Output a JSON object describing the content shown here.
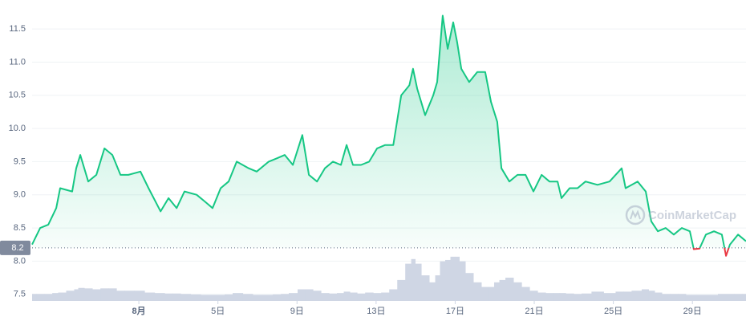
{
  "chart_data": {
    "type": "line",
    "x": [
      -4.4,
      -3.99,
      -3.58,
      -3.18,
      -2.98,
      -2.37,
      -2.17,
      -1.96,
      -1.56,
      -1.15,
      -0.74,
      -0.34,
      0.07,
      0.47,
      1.08,
      1.49,
      2.1,
      2.5,
      2.91,
      3.31,
      3.92,
      4.33,
      4.73,
      5.14,
      5.54,
      5.95,
      6.56,
      6.96,
      7.57,
      7.98,
      8.38,
      8.79,
      9.27,
      9.6,
      10.01,
      10.41,
      10.82,
      11.22,
      11.51,
      11.83,
      12.24,
      12.65,
      13.05,
      13.46,
      13.87,
      14.27,
      14.68,
      14.87,
      15.08,
      15.48,
      15.89,
      16.09,
      16.37,
      16.62,
      16.9,
      17.1,
      17.31,
      17.71,
      18.12,
      18.52,
      18.81,
      19.13,
      19.34,
      19.74,
      20.15,
      20.56,
      20.96,
      21.37,
      21.77,
      22.18,
      22.38,
      22.79,
      23.19,
      23.59,
      24.2,
      24.81,
      25.42,
      25.62,
      26.23,
      26.64,
      26.92,
      27.25,
      27.65,
      28.06,
      28.46,
      28.87,
      29.07,
      29.36,
      29.68,
      30.09,
      30.49,
      30.7,
      30.9,
      31.31,
      31.71
    ],
    "series": [
      {
        "color": "#16c784",
        "values": [
          8.25,
          8.5,
          8.55,
          8.8,
          9.1,
          9.05,
          9.4,
          9.6,
          9.2,
          9.3,
          9.7,
          9.6,
          9.3,
          9.3,
          9.35,
          9.1,
          8.75,
          8.95,
          8.8,
          9.05,
          9.0,
          8.9,
          8.8,
          9.1,
          9.2,
          9.5,
          9.4,
          9.35,
          9.5,
          9.55,
          9.6,
          9.45,
          9.9,
          9.3,
          9.2,
          9.4,
          9.5,
          9.45,
          9.75,
          9.45,
          9.45,
          9.5,
          9.7,
          9.75,
          9.75,
          10.5,
          10.65,
          10.9,
          10.6,
          10.2,
          10.5,
          10.7,
          11.7,
          11.2,
          11.6,
          11.3,
          10.9,
          10.7,
          10.85,
          10.85,
          10.4,
          10.1,
          9.4,
          9.2,
          9.3,
          9.3,
          9.05,
          9.3,
          9.2,
          9.2,
          8.95,
          9.1,
          9.1,
          9.2,
          9.15,
          9.2,
          9.4,
          9.1,
          9.2,
          9.05,
          8.6,
          8.45,
          8.5,
          8.4,
          8.5,
          8.45,
          8.18,
          8.19,
          8.4,
          8.45,
          8.4,
          8.08,
          8.25,
          8.4,
          8.3
        ]
      },
      {
        "color": "#cfd6e4",
        "values": [
          15,
          15,
          15,
          17,
          18,
          22,
          25,
          28,
          27,
          25,
          27,
          27,
          22,
          22,
          22,
          18,
          17,
          16,
          16,
          15,
          14,
          13,
          13,
          13,
          14,
          17,
          15,
          13,
          13,
          14,
          15,
          17,
          25,
          25,
          22,
          17,
          16,
          17,
          20,
          18,
          16,
          18,
          17,
          18,
          25,
          45,
          80,
          90,
          80,
          55,
          40,
          55,
          85,
          88,
          95,
          95,
          85,
          60,
          40,
          30,
          30,
          40,
          45,
          50,
          40,
          30,
          22,
          18,
          17,
          17,
          17,
          16,
          15,
          16,
          20,
          17,
          20,
          20,
          22,
          25,
          22,
          18,
          15,
          15,
          15,
          13,
          13,
          13,
          13,
          13,
          15,
          15,
          15,
          15,
          15
        ]
      }
    ],
    "below_color": "#ea3943",
    "baseline": 8.2,
    "xlim": [
      -4.4,
      31.71
    ],
    "xticks": [
      {
        "value": 1,
        "label": "8月"
      },
      {
        "value": 5,
        "label": "5日"
      },
      {
        "value": 9,
        "label": "9日"
      },
      {
        "value": 13,
        "label": "13日"
      },
      {
        "value": 17,
        "label": "17日"
      },
      {
        "value": 21,
        "label": "21日"
      },
      {
        "value": 25,
        "label": "25日"
      },
      {
        "value": 29,
        "label": "29日"
      }
    ],
    "ylim": [
      7.4,
      11.9
    ],
    "yticks": [
      7.5,
      {
        "value": 8,
        "label": "8.0"
      },
      8.5,
      {
        "value": 9,
        "label": "9.0"
      },
      9.5,
      {
        "value": 10,
        "label": "10.0"
      },
      10.5,
      {
        "value": 11,
        "label": "11.0"
      },
      11.5
    ],
    "grid": true,
    "watermark": "CoinMarketCap"
  }
}
